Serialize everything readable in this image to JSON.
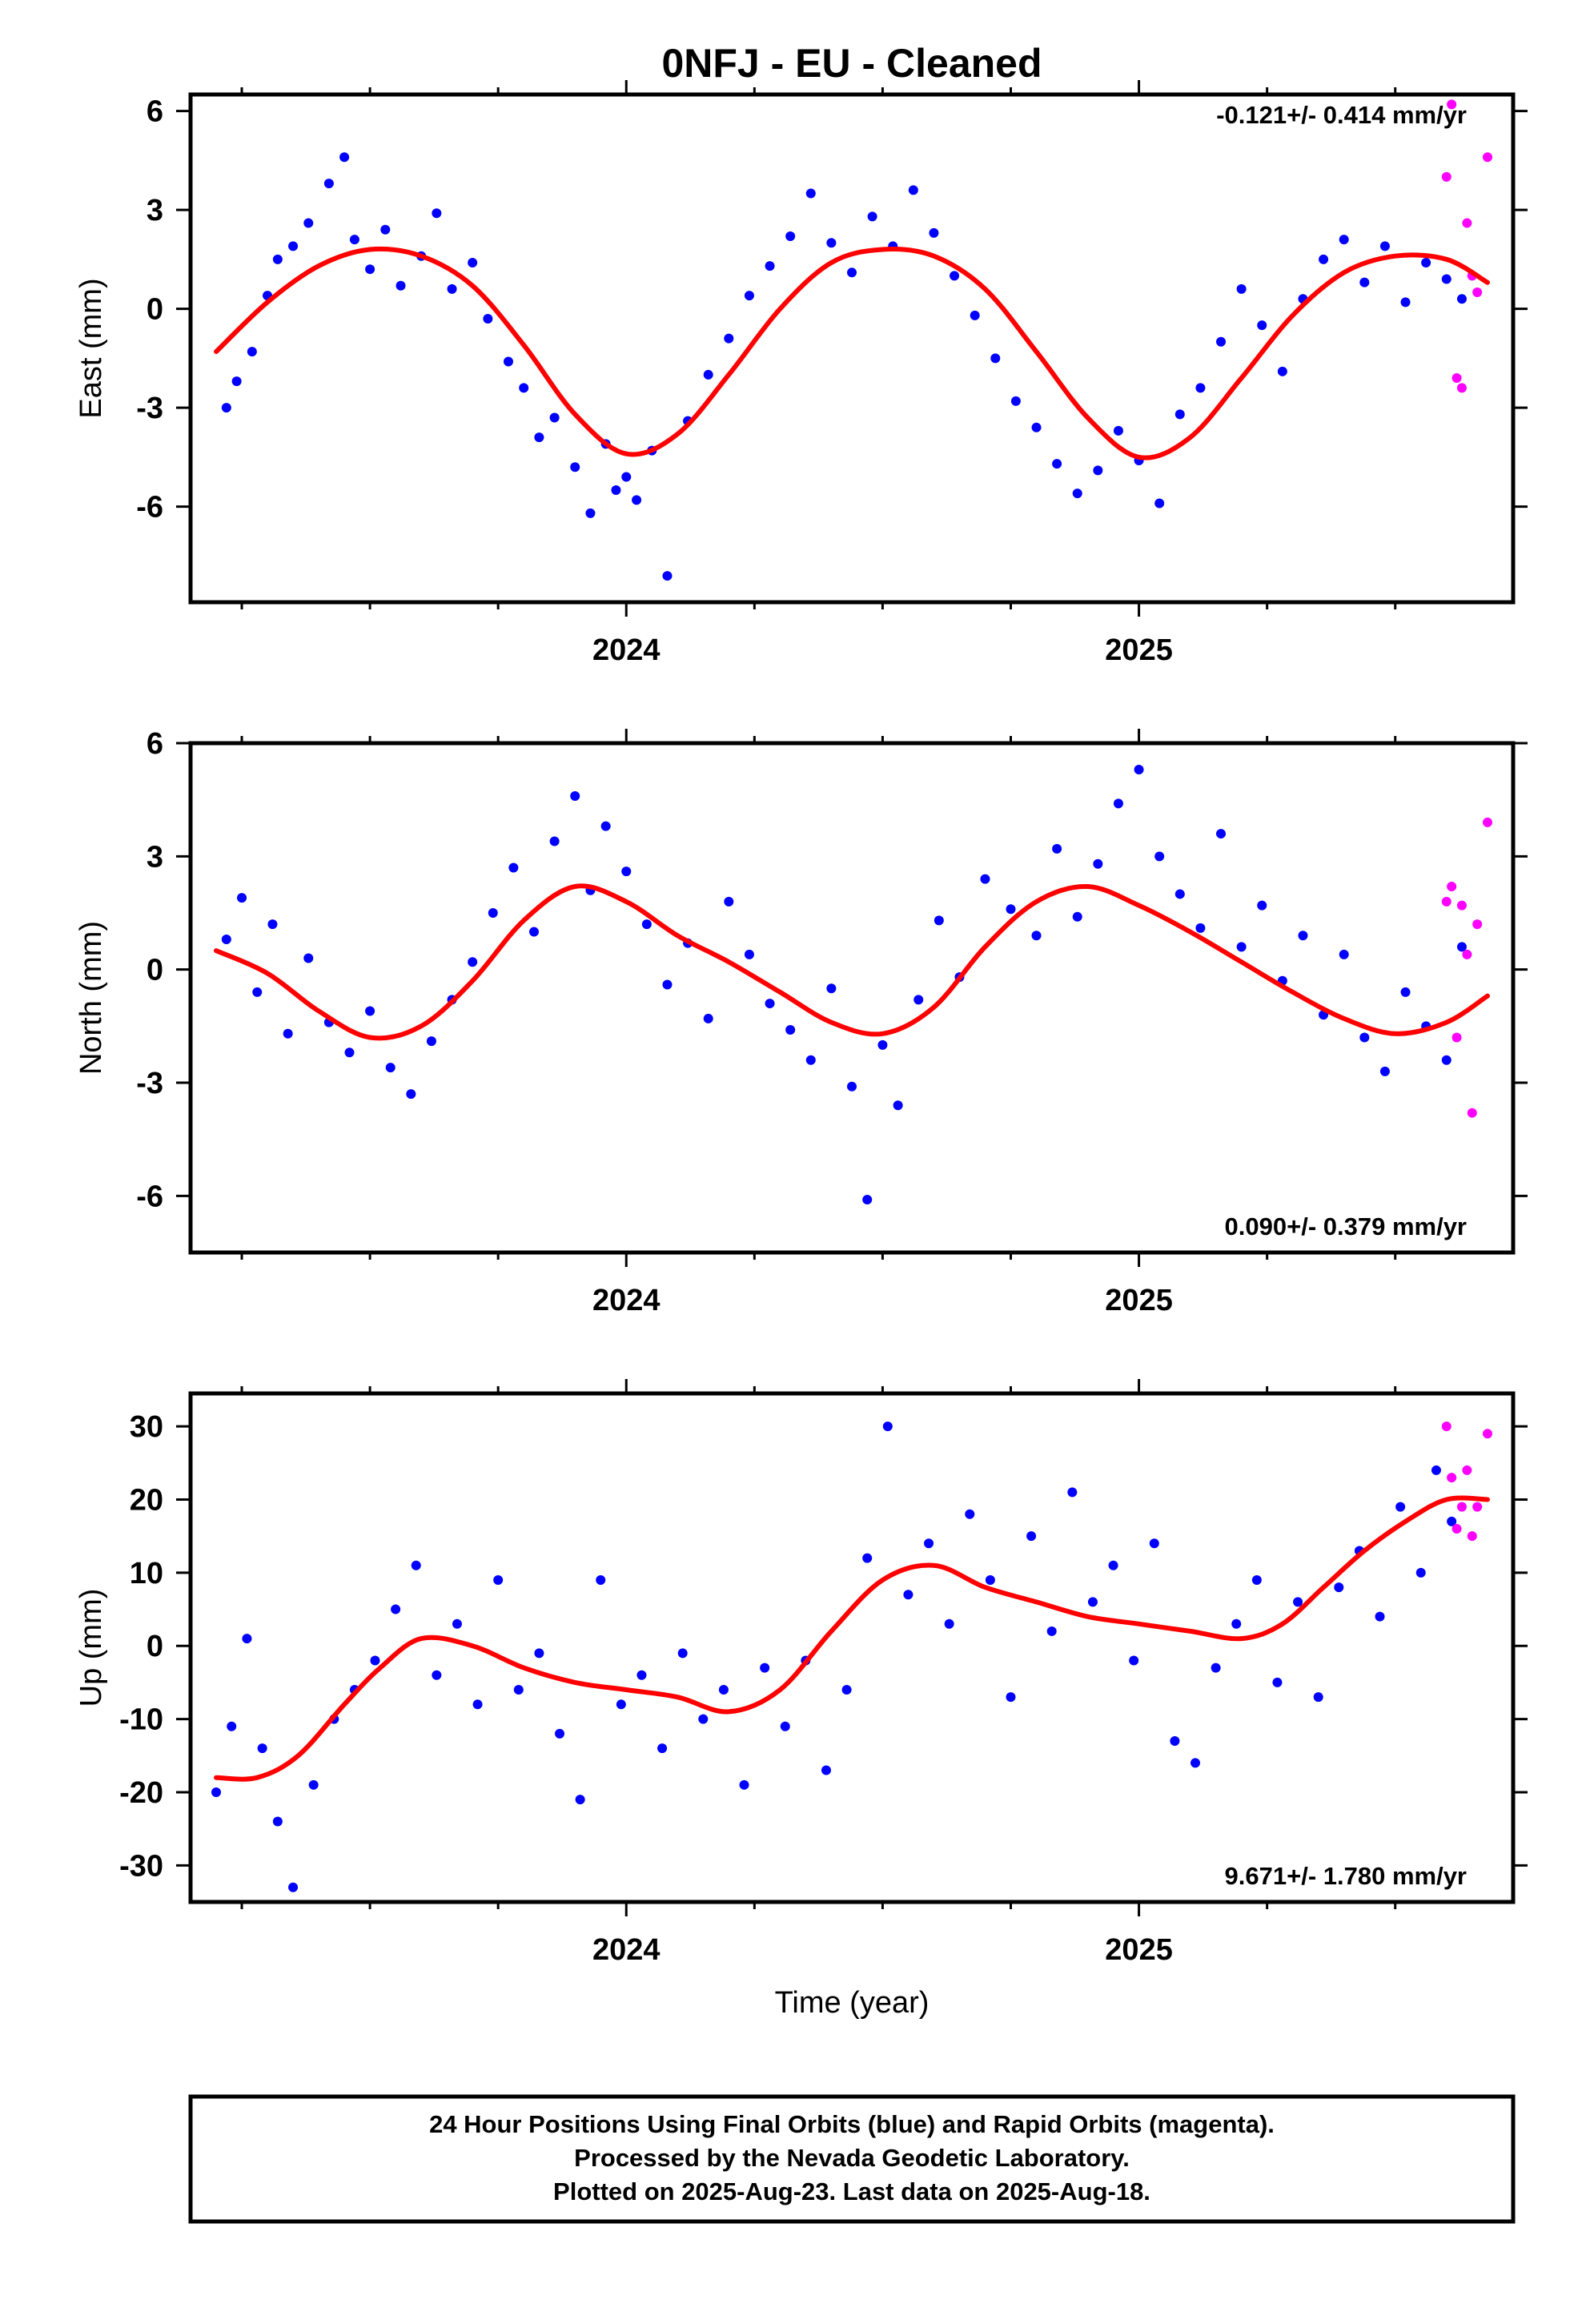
{
  "title": "0NFJ  - EU - Cleaned",
  "colors": {
    "final": "#0000ff",
    "rapid": "#ff00ff",
    "model": "#ff0000",
    "axis": "#000000"
  },
  "footer": {
    "line1": "24 Hour Positions Using Final Orbits (blue) and Rapid Orbits (magenta).",
    "line2": "Processed by the Nevada Geodetic Laboratory.",
    "line3": "Plotted on 2025-Aug-23. Last data on 2025-Aug-18."
  },
  "chart_data": [
    {
      "type": "scatter",
      "panel": "east",
      "ylabel": "East (mm)",
      "xlabel": "",
      "rate_label": "-0.121+/- 0.414 mm/yr",
      "rate_position": "top-right",
      "xlim": [
        2023.15,
        2025.73
      ],
      "ylim": [
        -8.9,
        6.5
      ],
      "yticks": [
        -6,
        -3,
        0,
        3,
        6
      ],
      "ytick_labels": [
        "-6",
        "-3",
        "0",
        "3",
        "6"
      ],
      "xticks": [
        2024,
        2025
      ],
      "xtick_labels": [
        "2024",
        "2025"
      ],
      "minor_xticks": [
        2023.25,
        2023.5,
        2023.75,
        2024.25,
        2024.5,
        2024.75,
        2025.25,
        2025.5
      ],
      "grid": false,
      "model": {
        "x": [
          2023.2,
          2023.3,
          2023.4,
          2023.5,
          2023.6,
          2023.7,
          2023.8,
          2023.9,
          2024.0,
          2024.1,
          2024.2,
          2024.3,
          2024.4,
          2024.5,
          2024.6,
          2024.7,
          2024.8,
          2024.9,
          2025.0,
          2025.1,
          2025.2,
          2025.3,
          2025.4,
          2025.5,
          2025.6,
          2025.68
        ],
        "y": [
          -1.3,
          0.2,
          1.3,
          1.8,
          1.6,
          0.7,
          -1.1,
          -3.2,
          -4.4,
          -3.8,
          -2.0,
          0.0,
          1.4,
          1.8,
          1.6,
          0.6,
          -1.3,
          -3.3,
          -4.5,
          -3.9,
          -2.1,
          -0.2,
          1.1,
          1.6,
          1.5,
          0.8
        ]
      },
      "final_series": {
        "x": [
          2023.22,
          2023.24,
          2023.27,
          2023.3,
          2023.32,
          2023.35,
          2023.38,
          2023.42,
          2023.45,
          2023.47,
          2023.5,
          2023.53,
          2023.56,
          2023.6,
          2023.63,
          2023.66,
          2023.7,
          2023.73,
          2023.77,
          2023.8,
          2023.83,
          2023.86,
          2023.9,
          2023.93,
          2023.96,
          2023.98,
          2024.0,
          2024.02,
          2024.05,
          2024.08,
          2024.12,
          2024.16,
          2024.2,
          2024.24,
          2024.28,
          2024.32,
          2024.36,
          2024.4,
          2024.44,
          2024.48,
          2024.52,
          2024.56,
          2024.6,
          2024.64,
          2024.68,
          2024.72,
          2024.76,
          2024.8,
          2024.84,
          2024.88,
          2024.92,
          2024.96,
          2025.0,
          2025.04,
          2025.08,
          2025.12,
          2025.16,
          2025.2,
          2025.24,
          2025.28,
          2025.32,
          2025.36,
          2025.4,
          2025.44,
          2025.48,
          2025.52,
          2025.56,
          2025.6,
          2025.63
        ],
        "y": [
          -3.0,
          -2.2,
          -1.3,
          0.4,
          1.5,
          1.9,
          2.6,
          3.8,
          4.6,
          2.1,
          1.2,
          2.4,
          0.7,
          1.6,
          2.9,
          0.6,
          1.4,
          -0.3,
          -1.6,
          -2.4,
          -3.9,
          -3.3,
          -4.8,
          -6.2,
          -4.1,
          -5.5,
          -5.1,
          -5.8,
          -4.3,
          -8.1,
          -3.4,
          -2.0,
          -0.9,
          0.4,
          1.3,
          2.2,
          3.5,
          2.0,
          1.1,
          2.8,
          1.9,
          3.6,
          2.3,
          1.0,
          -0.2,
          -1.5,
          -2.8,
          -3.6,
          -4.7,
          -5.6,
          -4.9,
          -3.7,
          -4.6,
          -5.9,
          -3.2,
          -2.4,
          -1.0,
          0.6,
          -0.5,
          -1.9,
          0.3,
          1.5,
          2.1,
          0.8,
          1.9,
          0.2,
          1.4,
          0.9,
          0.3
        ]
      },
      "rapid_series": {
        "x": [
          2025.6,
          2025.61,
          2025.62,
          2025.63,
          2025.64,
          2025.65,
          2025.66,
          2025.68
        ],
        "y": [
          4.0,
          6.2,
          -2.1,
          -2.4,
          2.6,
          1.0,
          0.5,
          4.6
        ]
      }
    },
    {
      "type": "scatter",
      "panel": "north",
      "ylabel": "North (mm)",
      "xlabel": "",
      "rate_label": "0.090+/- 0.379 mm/yr",
      "rate_position": "bottom-right",
      "xlim": [
        2023.15,
        2025.73
      ],
      "ylim": [
        -7.5,
        6.0
      ],
      "yticks": [
        -6,
        -3,
        0,
        3,
        6
      ],
      "ytick_labels": [
        "-6",
        "-3",
        "0",
        "3",
        "6"
      ],
      "xticks": [
        2024,
        2025
      ],
      "xtick_labels": [
        "2024",
        "2025"
      ],
      "minor_xticks": [
        2023.25,
        2023.5,
        2023.75,
        2024.25,
        2024.5,
        2024.75,
        2025.25,
        2025.5
      ],
      "grid": false,
      "model": {
        "x": [
          2023.2,
          2023.3,
          2023.4,
          2023.5,
          2023.6,
          2023.7,
          2023.8,
          2023.9,
          2024.0,
          2024.1,
          2024.2,
          2024.3,
          2024.4,
          2024.5,
          2024.6,
          2024.7,
          2024.8,
          2024.9,
          2025.0,
          2025.1,
          2025.2,
          2025.3,
          2025.4,
          2025.5,
          2025.6,
          2025.68
        ],
        "y": [
          0.5,
          -0.1,
          -1.1,
          -1.8,
          -1.5,
          -0.3,
          1.3,
          2.2,
          1.8,
          0.9,
          0.2,
          -0.6,
          -1.4,
          -1.7,
          -1.0,
          0.6,
          1.8,
          2.2,
          1.7,
          1.0,
          0.2,
          -0.6,
          -1.3,
          -1.7,
          -1.4,
          -0.7
        ]
      },
      "final_series": {
        "x": [
          2023.22,
          2023.25,
          2023.28,
          2023.31,
          2023.34,
          2023.38,
          2023.42,
          2023.46,
          2023.5,
          2023.54,
          2023.58,
          2023.62,
          2023.66,
          2023.7,
          2023.74,
          2023.78,
          2023.82,
          2023.86,
          2023.9,
          2023.93,
          2023.96,
          2024.0,
          2024.04,
          2024.08,
          2024.12,
          2024.16,
          2024.2,
          2024.24,
          2024.28,
          2024.32,
          2024.36,
          2024.4,
          2024.44,
          2024.47,
          2024.5,
          2024.53,
          2024.57,
          2024.61,
          2024.65,
          2024.7,
          2024.75,
          2024.8,
          2024.84,
          2024.88,
          2024.92,
          2024.96,
          2025.0,
          2025.04,
          2025.08,
          2025.12,
          2025.16,
          2025.2,
          2025.24,
          2025.28,
          2025.32,
          2025.36,
          2025.4,
          2025.44,
          2025.48,
          2025.52,
          2025.56,
          2025.6,
          2025.63
        ],
        "y": [
          0.8,
          1.9,
          -0.6,
          1.2,
          -1.7,
          0.3,
          -1.4,
          -2.2,
          -1.1,
          -2.6,
          -3.3,
          -1.9,
          -0.8,
          0.2,
          1.5,
          2.7,
          1.0,
          3.4,
          4.6,
          2.1,
          3.8,
          2.6,
          1.2,
          -0.4,
          0.7,
          -1.3,
          1.8,
          0.4,
          -0.9,
          -1.6,
          -2.4,
          -0.5,
          -3.1,
          -6.1,
          -2.0,
          -3.6,
          -0.8,
          1.3,
          -0.2,
          2.4,
          1.6,
          0.9,
          3.2,
          1.4,
          2.8,
          4.4,
          5.3,
          3.0,
          2.0,
          1.1,
          3.6,
          0.6,
          1.7,
          -0.3,
          0.9,
          -1.2,
          0.4,
          -1.8,
          -2.7,
          -0.6,
          -1.5,
          -2.4,
          0.6
        ]
      },
      "rapid_series": {
        "x": [
          2025.6,
          2025.61,
          2025.62,
          2025.63,
          2025.64,
          2025.65,
          2025.66,
          2025.68
        ],
        "y": [
          1.8,
          2.2,
          -1.8,
          1.7,
          0.4,
          -3.8,
          1.2,
          3.9
        ]
      }
    },
    {
      "type": "scatter",
      "panel": "up",
      "ylabel": "Up (mm)",
      "xlabel": "Time (year)",
      "rate_label": "9.671+/- 1.780 mm/yr",
      "rate_position": "bottom-right",
      "xlim": [
        2023.15,
        2025.73
      ],
      "ylim": [
        -35,
        34.5
      ],
      "yticks": [
        -30,
        -20,
        -10,
        0,
        10,
        20,
        30
      ],
      "ytick_labels": [
        "-30",
        "-20",
        "-10",
        "0",
        "10",
        "20",
        "30"
      ],
      "xticks": [
        2024,
        2025
      ],
      "xtick_labels": [
        "2024",
        "2025"
      ],
      "minor_xticks": [
        2023.25,
        2023.5,
        2023.75,
        2024.25,
        2024.5,
        2024.75,
        2025.25,
        2025.5
      ],
      "grid": false,
      "model": {
        "x": [
          2023.2,
          2023.28,
          2023.36,
          2023.45,
          2023.52,
          2023.6,
          2023.7,
          2023.8,
          2023.9,
          2024.0,
          2024.1,
          2024.2,
          2024.3,
          2024.4,
          2024.5,
          2024.6,
          2024.7,
          2024.8,
          2024.9,
          2025.0,
          2025.1,
          2025.2,
          2025.28,
          2025.36,
          2025.44,
          2025.52,
          2025.6,
          2025.68
        ],
        "y": [
          -18,
          -18,
          -15,
          -8,
          -3,
          1,
          0,
          -3,
          -5,
          -6,
          -7,
          -9,
          -6,
          2,
          9,
          11,
          8,
          6,
          4,
          3,
          2,
          1,
          3,
          8,
          13,
          17,
          20,
          20
        ]
      },
      "final_series": {
        "x": [
          2023.2,
          2023.23,
          2023.26,
          2023.29,
          2023.32,
          2023.35,
          2023.39,
          2023.43,
          2023.47,
          2023.51,
          2023.55,
          2023.59,
          2023.63,
          2023.67,
          2023.71,
          2023.75,
          2023.79,
          2023.83,
          2023.87,
          2023.91,
          2023.95,
          2023.99,
          2024.03,
          2024.07,
          2024.11,
          2024.15,
          2024.19,
          2024.23,
          2024.27,
          2024.31,
          2024.35,
          2024.39,
          2024.43,
          2024.47,
          2024.51,
          2024.55,
          2024.59,
          2024.63,
          2024.67,
          2024.71,
          2024.75,
          2024.79,
          2024.83,
          2024.87,
          2024.91,
          2024.95,
          2024.99,
          2025.03,
          2025.07,
          2025.11,
          2025.15,
          2025.19,
          2025.23,
          2025.27,
          2025.31,
          2025.35,
          2025.39,
          2025.43,
          2025.47,
          2025.51,
          2025.55,
          2025.58,
          2025.61
        ],
        "y": [
          -20,
          -11,
          1,
          -14,
          -24,
          -33,
          -19,
          -10,
          -6,
          -2,
          5,
          11,
          -4,
          3,
          -8,
          9,
          -6,
          -1,
          -12,
          -21,
          9,
          -8,
          -4,
          -14,
          -1,
          -10,
          -6,
          -19,
          -3,
          -11,
          -2,
          -17,
          -6,
          12,
          30,
          7,
          14,
          3,
          18,
          9,
          -7,
          15,
          2,
          21,
          6,
          11,
          -2,
          14,
          -13,
          -16,
          -3,
          3,
          9,
          -5,
          6,
          -7,
          8,
          13,
          4,
          19,
          10,
          24,
          17
        ]
      },
      "rapid_series": {
        "x": [
          2025.6,
          2025.61,
          2025.62,
          2025.63,
          2025.64,
          2025.65,
          2025.66,
          2025.68
        ],
        "y": [
          30,
          23,
          16,
          19,
          24,
          15,
          19,
          29
        ]
      }
    }
  ]
}
